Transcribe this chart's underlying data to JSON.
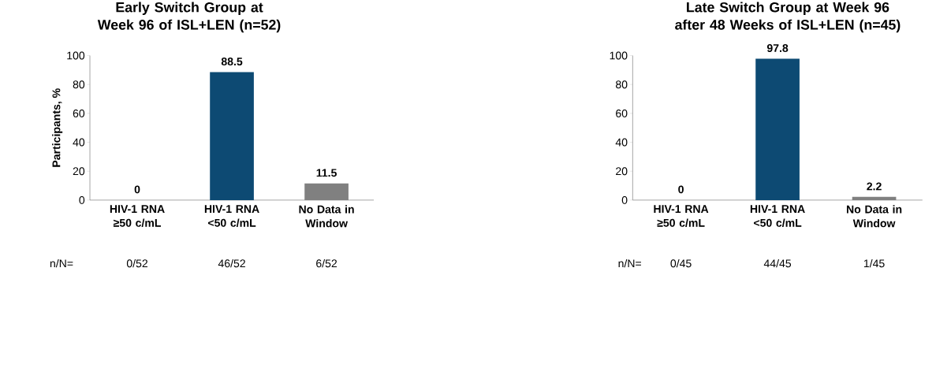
{
  "chart_data": [
    {
      "type": "bar",
      "title": "Early Switch Group at Week 96 of ISL+LEN (n=52)",
      "ylabel": "Participants, %",
      "categories": [
        "HIV-1 RNA ≥50 c/mL",
        "HIV-1 RNA <50 c/mL",
        "No Data in Window"
      ],
      "values": [
        0,
        88.5,
        11.5
      ],
      "colors": [
        "#0d4a73",
        "#0d4a73",
        "#808080"
      ],
      "ylim": [
        0,
        100
      ],
      "yticks": [
        0,
        20,
        40,
        60,
        80,
        100
      ],
      "data_labels": true,
      "annotations": [
        "n/N=",
        "0/52",
        "46/52",
        "6/52"
      ]
    },
    {
      "type": "bar",
      "title": "Late Switch Group at Week 96 after 48 Weeks of ISL+LEN (n=45)",
      "categories": [
        "HIV-1 RNA ≥50 c/mL",
        "HIV-1 RNA <50 c/mL",
        "No Data in Window"
      ],
      "values": [
        0,
        97.8,
        2.2
      ],
      "colors": [
        "#0d4a73",
        "#0d4a73",
        "#808080"
      ],
      "ylim": [
        0,
        100
      ],
      "yticks": [
        0,
        20,
        40,
        60,
        80,
        100
      ],
      "data_labels": true,
      "annotations": [
        "n/N=",
        "0/45",
        "44/45",
        "1/45"
      ]
    }
  ]
}
